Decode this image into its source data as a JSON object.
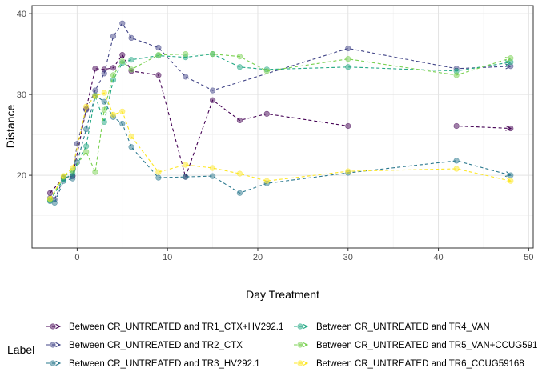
{
  "chart_data": {
    "type": "line",
    "xlabel": "Day Treatment",
    "ylabel": "Distance",
    "xlim": [
      -5,
      50.5
    ],
    "ylim": [
      11,
      41
    ],
    "x_ticks": [
      0,
      10,
      20,
      30,
      40,
      50
    ],
    "y_ticks": [
      20,
      30,
      40
    ],
    "grid": true,
    "line_style": "dashed",
    "legend": {
      "title": "Label",
      "position": "bottom",
      "columns": 2
    },
    "series": [
      {
        "name": "Between CR_UNTREATED and TR1_CTX+HV292.1",
        "color": "#440154",
        "x": [
          -3,
          -1.5,
          -0.5,
          1,
          2,
          3,
          4,
          5,
          6,
          9,
          12,
          15,
          18,
          21,
          30,
          42,
          48
        ],
        "y": [
          17.8,
          19.7,
          19.9,
          28.2,
          33.2,
          33.1,
          33.3,
          34.9,
          32.9,
          32.4,
          19.8,
          29.3,
          26.8,
          27.6,
          26.1,
          26.1,
          25.8
        ]
      },
      {
        "name": "Between CR_UNTREATED and TR2_CTX",
        "color": "#414487",
        "x": [
          -3,
          -2.5,
          -1.5,
          -0.5,
          0,
          1,
          2,
          3,
          4,
          5,
          6,
          9,
          12,
          15,
          30,
          42,
          48
        ],
        "y": [
          17.2,
          17.0,
          19.6,
          19.9,
          23.9,
          28.1,
          30.5,
          32.6,
          37.2,
          38.8,
          37.0,
          35.8,
          32.2,
          30.5,
          35.7,
          33.2,
          33.5
        ]
      },
      {
        "name": "Between CR_UNTREATED and TR3_HV292.1",
        "color": "#2A788E",
        "x": [
          -3,
          -2.5,
          -1.5,
          -0.5,
          0,
          1,
          2,
          3,
          4,
          5,
          6,
          9,
          12,
          15,
          18,
          21,
          30,
          42,
          48
        ],
        "y": [
          16.8,
          16.6,
          19.3,
          19.6,
          21.6,
          25.7,
          29.9,
          29.1,
          27.2,
          26.4,
          23.5,
          19.7,
          19.8,
          19.9,
          17.8,
          19.0,
          20.3,
          21.8,
          20.0
        ]
      },
      {
        "name": "Between CR_UNTREATED and TR4_VAN",
        "color": "#22A884",
        "x": [
          -3,
          -1.5,
          -0.5,
          1,
          2,
          3,
          4,
          5,
          6,
          9,
          12,
          15,
          18,
          21,
          30,
          42,
          48
        ],
        "y": [
          16.9,
          19.5,
          20.2,
          23.6,
          29.8,
          26.6,
          31.8,
          33.9,
          34.3,
          34.8,
          34.6,
          35.0,
          33.4,
          33.1,
          33.4,
          32.9,
          34.0
        ]
      },
      {
        "name": "Between CR_UNTREATED and TR5_VAN+CCUG59168",
        "color": "#7AD151",
        "x": [
          -3,
          -1.5,
          -0.5,
          1,
          2,
          3,
          4,
          5,
          6,
          9,
          12,
          15,
          18,
          21,
          30,
          42,
          48
        ],
        "y": [
          17.0,
          19.8,
          20.6,
          22.9,
          20.4,
          28.1,
          32.4,
          34.1,
          33.1,
          34.9,
          35.0,
          35.0,
          34.7,
          32.9,
          34.4,
          32.4,
          34.5
        ]
      },
      {
        "name": "Between CR_UNTREATED and TR6_CCUG59168",
        "color": "#FDE725",
        "x": [
          -3,
          -1.5,
          -0.5,
          1,
          2,
          3,
          4,
          5,
          6,
          9,
          12,
          15,
          18,
          21,
          30,
          42,
          48
        ],
        "y": [
          17.1,
          19.9,
          20.9,
          28.5,
          29.8,
          30.2,
          27.5,
          27.9,
          24.8,
          20.4,
          21.3,
          20.9,
          20.2,
          19.3,
          20.5,
          20.8,
          19.3
        ]
      }
    ]
  }
}
